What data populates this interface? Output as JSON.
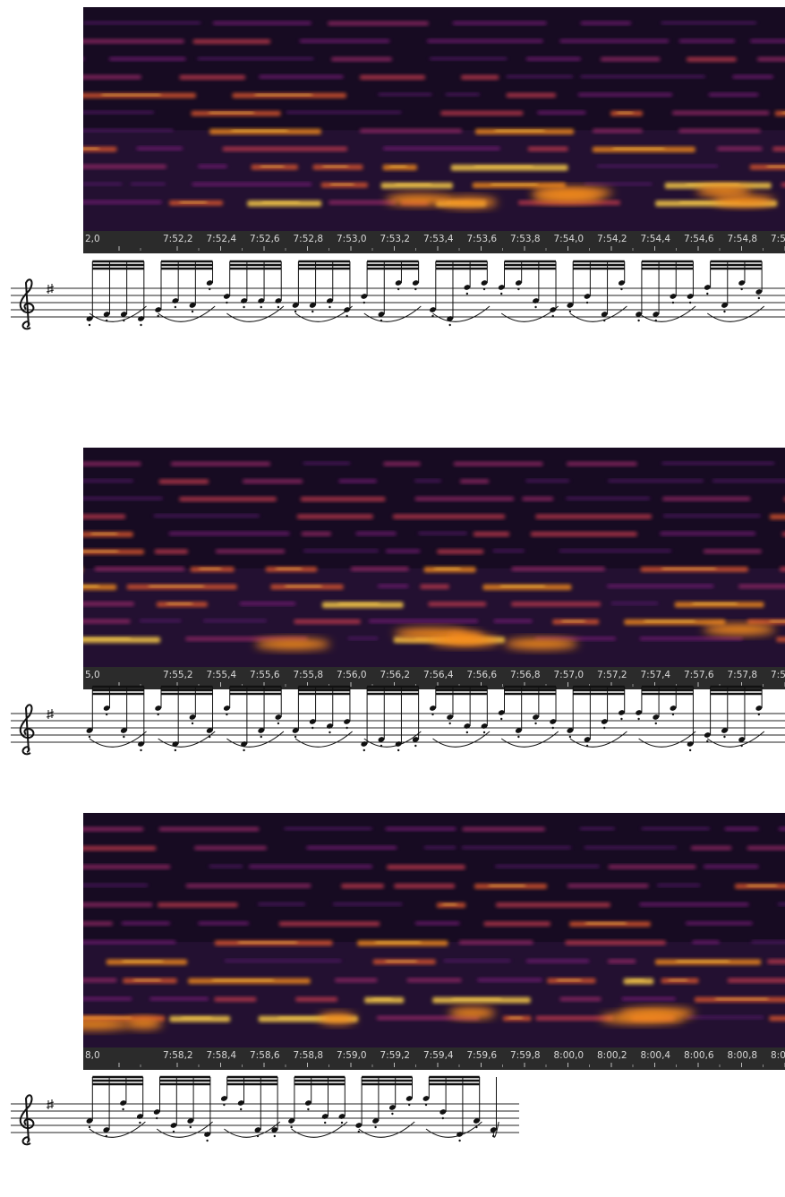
{
  "panels": [
    {
      "time_labels": [
        "2,0",
        "7:52,2",
        "7:52,4",
        "7:52,6",
        "7:52,8",
        "7:53,0",
        "7:53,2",
        "7:53,4",
        "7:53,6",
        "7:53,8",
        "7:54,0",
        "7:54,2",
        "7:54,4",
        "7:54,6",
        "7:54,8",
        "7:5"
      ]
    },
    {
      "time_labels": [
        "5,0",
        "7:55,2",
        "7:55,4",
        "7:55,6",
        "7:55,8",
        "7:56,0",
        "7:56,2",
        "7:56,4",
        "7:56,6",
        "7:56,8",
        "7:57,0",
        "7:57,2",
        "7:57,4",
        "7:57,6",
        "7:57,8",
        "7:5"
      ]
    },
    {
      "time_labels": [
        "8,0",
        "7:58,2",
        "7:58,4",
        "7:58,6",
        "7:58,8",
        "7:59,0",
        "7:59,2",
        "7:59,4",
        "7:59,6",
        "7:59,8",
        "8:00,0",
        "8:00,2",
        "8:00,4",
        "8:00,6",
        "8:00,8",
        "8:0"
      ]
    }
  ]
}
